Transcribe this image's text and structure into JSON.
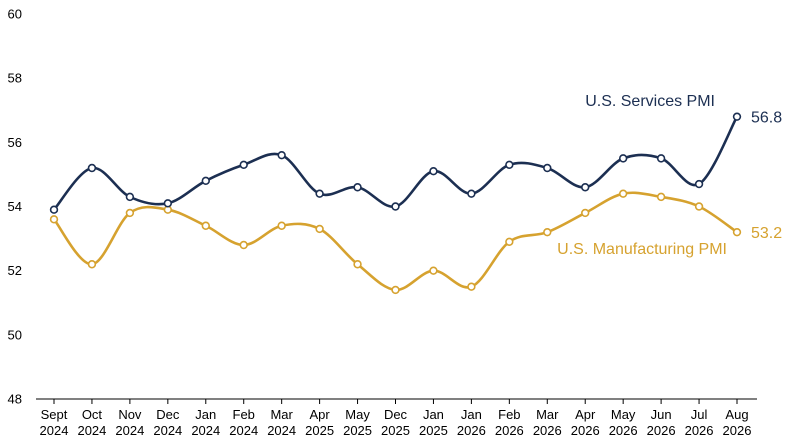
{
  "chart_data": {
    "type": "line",
    "title": "",
    "xlabel": "",
    "ylabel": "",
    "ylim": [
      48,
      60
    ],
    "yticks": [
      48,
      50,
      52,
      54,
      56,
      58,
      60
    ],
    "grid": false,
    "categories": [
      [
        "Sept",
        "2024"
      ],
      [
        "Oct",
        "2024"
      ],
      [
        "Nov",
        "2024"
      ],
      [
        "Dec",
        "2024"
      ],
      [
        "Jan",
        "2024"
      ],
      [
        "Feb",
        "2024"
      ],
      [
        "Mar",
        "2024"
      ],
      [
        "Apr",
        "2025"
      ],
      [
        "May",
        "2025"
      ],
      [
        "Dec",
        "2025"
      ],
      [
        "Jan",
        "2025"
      ],
      [
        "Jan",
        "2026"
      ],
      [
        "Feb",
        "2026"
      ],
      [
        "Mar",
        "2026"
      ],
      [
        "Apr",
        "2026"
      ],
      [
        "May",
        "2026"
      ],
      [
        "Jun",
        "2026"
      ],
      [
        "Jul",
        "2026"
      ],
      [
        "Aug",
        "2026"
      ]
    ],
    "series": [
      {
        "name": "U.S. Services PMI",
        "color": "#1c2f52",
        "end_label": "56.8",
        "values": [
          53.9,
          55.2,
          54.3,
          54.1,
          54.8,
          55.3,
          55.6,
          54.4,
          54.6,
          54.0,
          55.1,
          54.4,
          55.3,
          55.2,
          54.6,
          55.5,
          55.5,
          54.7,
          56.8
        ]
      },
      {
        "name": "U.S. Manufacturing PMI",
        "color": "#d6a22f",
        "end_label": "53.2",
        "values": [
          53.6,
          52.2,
          53.8,
          53.9,
          53.4,
          52.8,
          53.4,
          53.3,
          52.2,
          51.4,
          52.0,
          51.5,
          52.9,
          53.2,
          53.8,
          54.4,
          54.3,
          54.0,
          53.2
        ]
      }
    ]
  }
}
